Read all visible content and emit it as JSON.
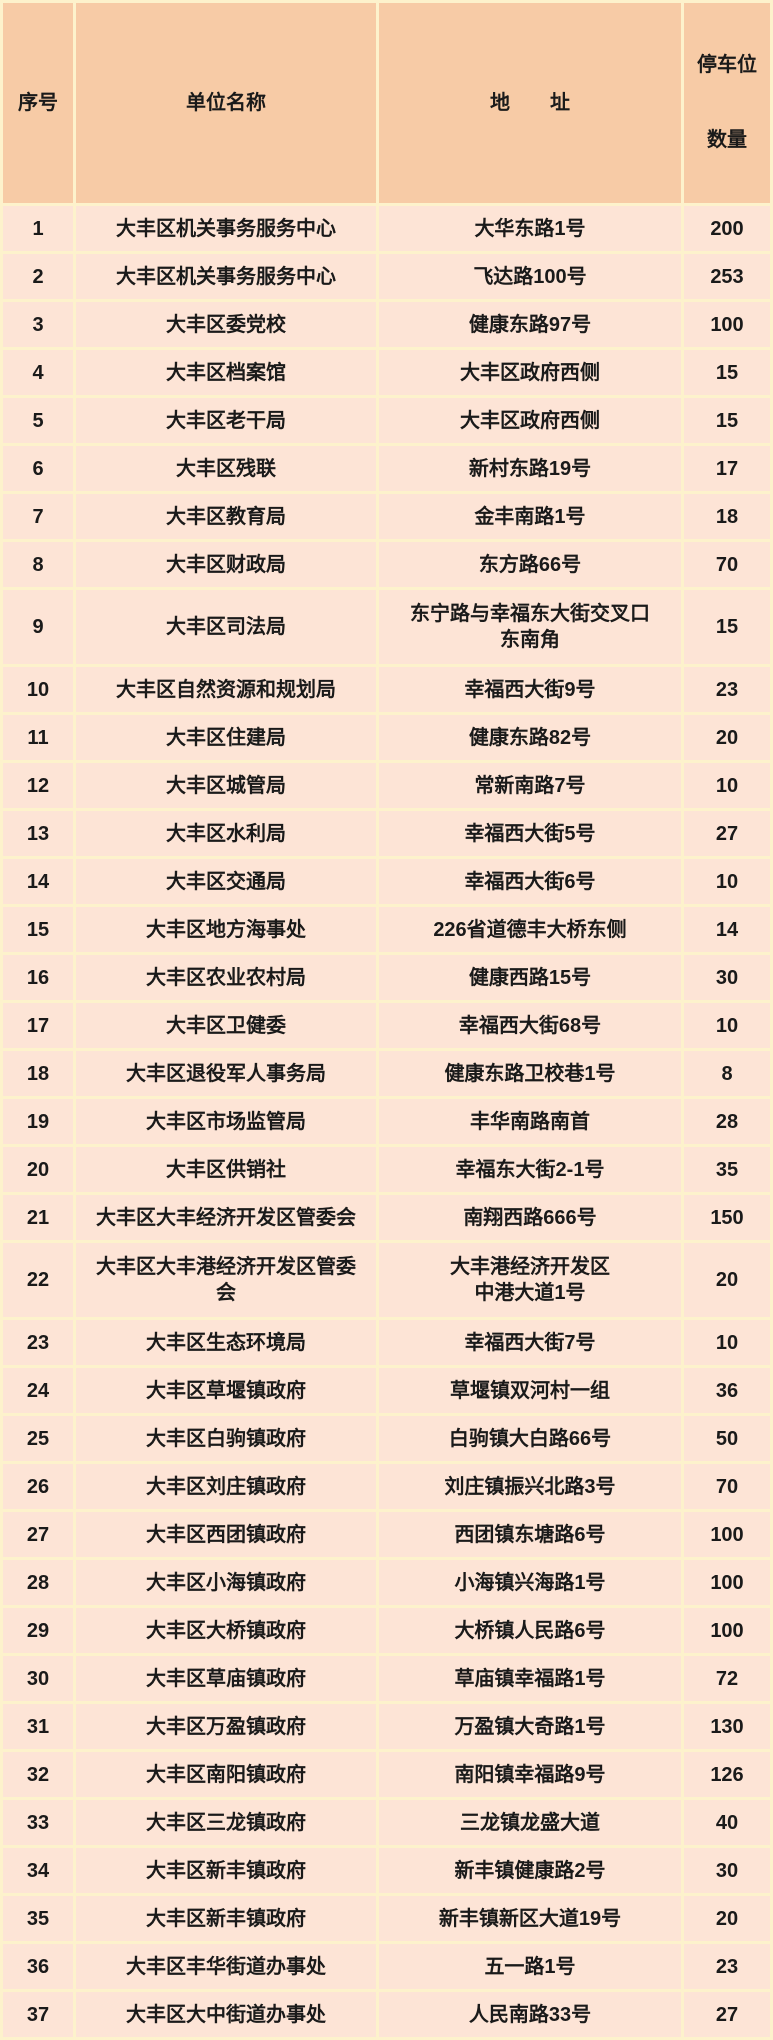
{
  "table": {
    "columns": [
      {
        "label": "序号"
      },
      {
        "label": "单位名称"
      },
      {
        "label": "地　　址"
      },
      {
        "label_lines": [
          "停车位",
          "数量"
        ]
      }
    ],
    "rows": [
      {
        "no": "1",
        "unit": "大丰区机关事务服务中心",
        "address": "大华东路1号",
        "count": "200"
      },
      {
        "no": "2",
        "unit": "大丰区机关事务服务中心",
        "address": "飞达路100号",
        "count": "253"
      },
      {
        "no": "3",
        "unit": "大丰区委党校",
        "address": "健康东路97号",
        "count": "100"
      },
      {
        "no": "4",
        "unit": "大丰区档案馆",
        "address": "大丰区政府西侧",
        "count": "15"
      },
      {
        "no": "5",
        "unit": "大丰区老干局",
        "address": "大丰区政府西侧",
        "count": "15"
      },
      {
        "no": "6",
        "unit": "大丰区残联",
        "address": "新村东路19号",
        "count": "17"
      },
      {
        "no": "7",
        "unit": "大丰区教育局",
        "address": "金丰南路1号",
        "count": "18"
      },
      {
        "no": "8",
        "unit": "大丰区财政局",
        "address": "东方路66号",
        "count": "70"
      },
      {
        "no": "9",
        "unit": "大丰区司法局",
        "address": [
          "东宁路与幸福东大街交叉口",
          "东南角"
        ],
        "count": "15"
      },
      {
        "no": "10",
        "unit": "大丰区自然资源和规划局",
        "address": "幸福西大街9号",
        "count": "23"
      },
      {
        "no": "11",
        "unit": "大丰区住建局",
        "address": "健康东路82号",
        "count": "20"
      },
      {
        "no": "12",
        "unit": "大丰区城管局",
        "address": "常新南路7号",
        "count": "10"
      },
      {
        "no": "13",
        "unit": "大丰区水利局",
        "address": "幸福西大街5号",
        "count": "27"
      },
      {
        "no": "14",
        "unit": "大丰区交通局",
        "address": "幸福西大街6号",
        "count": "10"
      },
      {
        "no": "15",
        "unit": "大丰区地方海事处",
        "address": "226省道德丰大桥东侧",
        "count": "14"
      },
      {
        "no": "16",
        "unit": "大丰区农业农村局",
        "address": "健康西路15号",
        "count": "30"
      },
      {
        "no": "17",
        "unit": "大丰区卫健委",
        "address": "幸福西大街68号",
        "count": "10"
      },
      {
        "no": "18",
        "unit": "大丰区退役军人事务局",
        "address": "健康东路卫校巷1号",
        "count": "8"
      },
      {
        "no": "19",
        "unit": "大丰区市场监管局",
        "address": "丰华南路南首",
        "count": "28"
      },
      {
        "no": "20",
        "unit": "大丰区供销社",
        "address": "幸福东大街2-1号",
        "count": "35"
      },
      {
        "no": "21",
        "unit": "大丰区大丰经济开发区管委会",
        "address": "南翔西路666号",
        "count": "150"
      },
      {
        "no": "22",
        "unit": [
          "大丰区大丰港经济开发区管委",
          "会"
        ],
        "address": [
          "大丰港经济开发区",
          "中港大道1号"
        ],
        "count": "20"
      },
      {
        "no": "23",
        "unit": "大丰区生态环境局",
        "address": "幸福西大街7号",
        "count": "10"
      },
      {
        "no": "24",
        "unit": "大丰区草堰镇政府",
        "address": "草堰镇双河村一组",
        "count": "36"
      },
      {
        "no": "25",
        "unit": "大丰区白驹镇政府",
        "address": "白驹镇大白路66号",
        "count": "50"
      },
      {
        "no": "26",
        "unit": "大丰区刘庄镇政府",
        "address": "刘庄镇振兴北路3号",
        "count": "70"
      },
      {
        "no": "27",
        "unit": "大丰区西团镇政府",
        "address": "西团镇东塘路6号",
        "count": "100"
      },
      {
        "no": "28",
        "unit": "大丰区小海镇政府",
        "address": "小海镇兴海路1号",
        "count": "100"
      },
      {
        "no": "29",
        "unit": "大丰区大桥镇政府",
        "address": "大桥镇人民路6号",
        "count": "100"
      },
      {
        "no": "30",
        "unit": "大丰区草庙镇政府",
        "address": "草庙镇幸福路1号",
        "count": "72"
      },
      {
        "no": "31",
        "unit": "大丰区万盈镇政府",
        "address": "万盈镇大奇路1号",
        "count": "130"
      },
      {
        "no": "32",
        "unit": "大丰区南阳镇政府",
        "address": "南阳镇幸福路9号",
        "count": "126"
      },
      {
        "no": "33",
        "unit": "大丰区三龙镇政府",
        "address": "三龙镇龙盛大道",
        "count": "40"
      },
      {
        "no": "34",
        "unit": "大丰区新丰镇政府",
        "address": "新丰镇健康路2号",
        "count": "30"
      },
      {
        "no": "35",
        "unit": "大丰区新丰镇政府",
        "address": "新丰镇新区大道19号",
        "count": "20"
      },
      {
        "no": "36",
        "unit": "大丰区丰华街道办事处",
        "address": "五一路1号",
        "count": "23"
      },
      {
        "no": "37",
        "unit": "大丰区大中街道办事处",
        "address": "人民南路33号",
        "count": "27"
      }
    ]
  },
  "colors": {
    "header_bg": "#f7cba6",
    "row_bg": "#fde4d6",
    "grid": "#fdf2cc",
    "text": "#1a1a1a"
  }
}
